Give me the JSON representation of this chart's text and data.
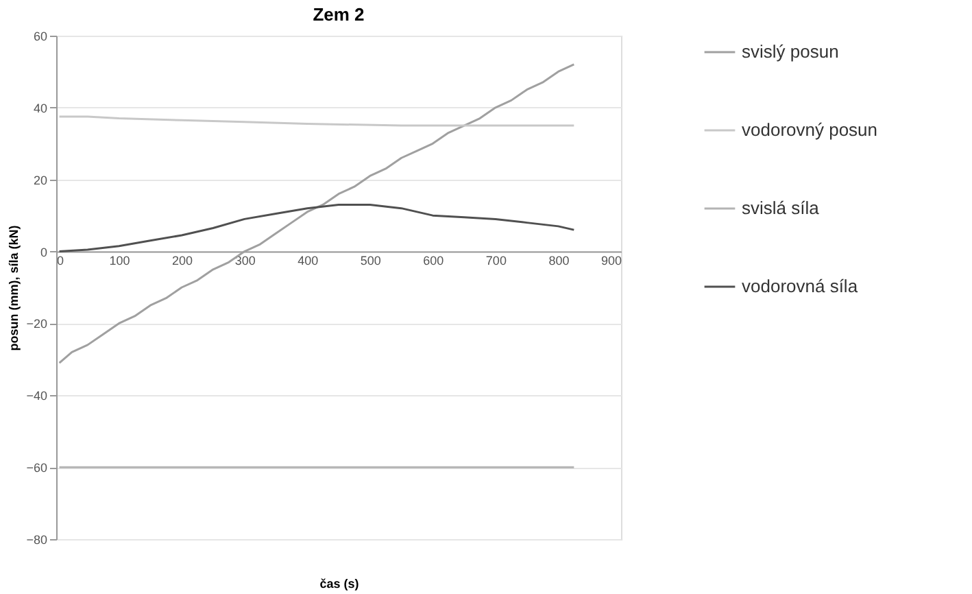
{
  "chart_data": {
    "type": "line",
    "title": "Zem 2",
    "xlabel": "čas (s)",
    "ylabel": "posun (mm), síla (kN)",
    "xlim": [
      0,
      900
    ],
    "xticks": [
      0,
      100,
      200,
      300,
      400,
      500,
      600,
      700,
      800,
      900
    ],
    "ylim": [
      -80,
      60
    ],
    "yticks": [
      -80,
      -60,
      -40,
      -20,
      0,
      20,
      40,
      60
    ],
    "grid": "y",
    "legend": "right",
    "marker": "none",
    "line_style": "solid",
    "series": [
      {
        "name": "svislý posun",
        "color": "#a0a0a0",
        "x": [
          5,
          25,
          50,
          75,
          100,
          125,
          150,
          175,
          200,
          225,
          250,
          275,
          300,
          325,
          350,
          375,
          400,
          425,
          450,
          475,
          500,
          525,
          550,
          575,
          600,
          625,
          650,
          675,
          700,
          725,
          750,
          775,
          800,
          825
        ],
        "values": [
          -31,
          -28,
          -26,
          -23,
          -20,
          -18,
          -15,
          -13,
          -10,
          -8,
          -5,
          -3,
          0,
          2,
          5,
          8,
          11,
          13,
          16,
          18,
          21,
          23,
          26,
          28,
          30,
          33,
          35,
          37,
          40,
          42,
          45,
          47,
          50,
          52
        ]
      },
      {
        "name": "vodorovný posun",
        "color": "#c8c8c8",
        "x": [
          5,
          50,
          100,
          200,
          300,
          400,
          550,
          700,
          825
        ],
        "values": [
          37.5,
          37.5,
          37,
          36.5,
          36,
          35.5,
          35,
          35,
          35
        ]
      },
      {
        "name": "svislá síla",
        "color": "#b4b4b4",
        "x": [
          5,
          825
        ],
        "values": [
          -60,
          -60
        ]
      },
      {
        "name": "vodorovná síla",
        "color": "#505050",
        "x": [
          5,
          50,
          100,
          150,
          200,
          250,
          300,
          350,
          400,
          450,
          500,
          550,
          600,
          650,
          700,
          750,
          800,
          825
        ],
        "values": [
          0,
          0.5,
          1.5,
          3,
          4.5,
          6.5,
          9,
          10.5,
          12,
          13,
          13,
          12,
          10,
          9.5,
          9,
          8,
          7,
          6
        ]
      }
    ]
  }
}
